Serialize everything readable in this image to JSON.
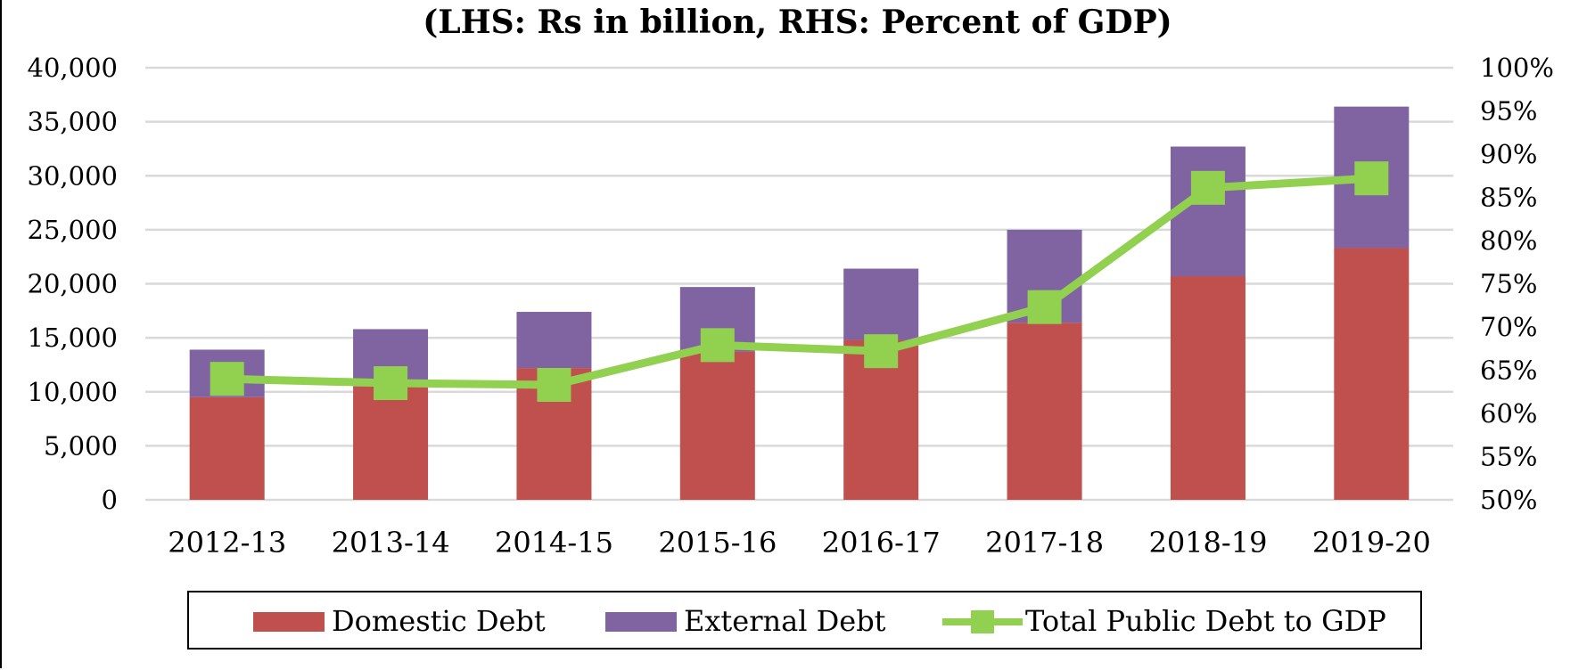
{
  "chart_data": {
    "type": "bar",
    "subtitle": "(LHS: Rs in billion, RHS: Percent of GDP)",
    "categories": [
      "2012-13",
      "2013-14",
      "2014-15",
      "2015-16",
      "2016-17",
      "2017-18",
      "2018-19",
      "2019-20"
    ],
    "series": [
      {
        "name": "Domestic Debt",
        "type": "bar",
        "stack": "debt",
        "axis": "left",
        "values": [
          9500,
          10500,
          12200,
          13700,
          14800,
          16400,
          20700,
          23300
        ]
      },
      {
        "name": "External Debt",
        "type": "bar",
        "stack": "debt",
        "axis": "left",
        "values": [
          4400,
          5300,
          5200,
          6000,
          6600,
          8600,
          12000,
          13100
        ]
      },
      {
        "name": "Total Public Debt to GDP",
        "type": "line",
        "axis": "right",
        "values": [
          64.0,
          63.5,
          63.3,
          67.9,
          67.2,
          72.3,
          86.1,
          87.2
        ]
      }
    ],
    "y_left": {
      "min": 0,
      "max": 40000,
      "step": 5000,
      "tick_labels": [
        "0",
        "5,000",
        "10,000",
        "15,000",
        "20,000",
        "25,000",
        "30,000",
        "35,000",
        "40,000"
      ]
    },
    "y_right": {
      "min": 50,
      "max": 100,
      "step": 5,
      "tick_labels": [
        "50%",
        "55%",
        "60%",
        "65%",
        "70%",
        "75%",
        "80%",
        "85%",
        "90%",
        "95%",
        "100%"
      ]
    },
    "grid": true,
    "legend_position": "bottom",
    "colors": {
      "domestic": "#c0504d",
      "external": "#8064a2",
      "line": "#92d050",
      "grid": "#d9d9d9"
    }
  }
}
